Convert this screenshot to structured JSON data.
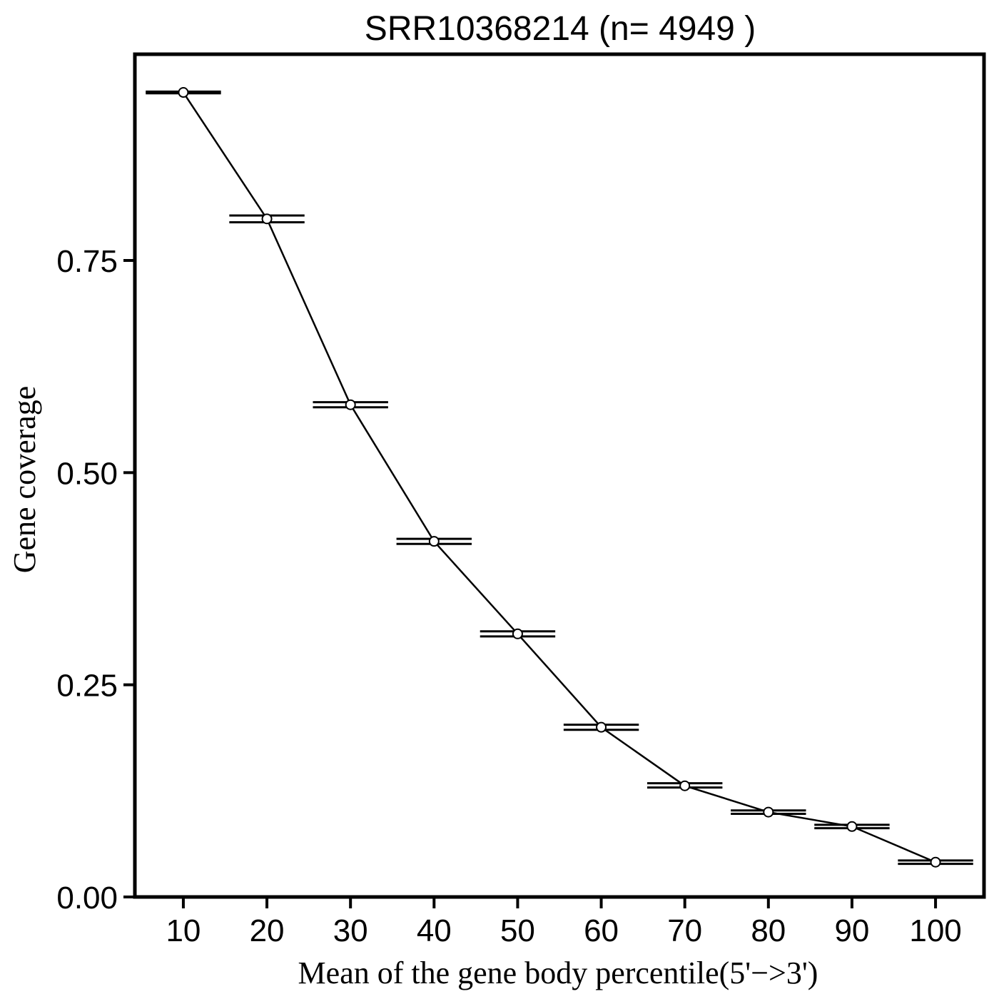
{
  "chart_data": {
    "type": "line",
    "title": "SRR10368214 (n= 4949 )",
    "xlabel": "Mean of the gene body percentile(5'−>3')",
    "ylabel": "Gene coverage",
    "x": [
      10,
      20,
      30,
      40,
      50,
      60,
      70,
      80,
      90,
      100
    ],
    "x_ticks": [
      "10",
      "20",
      "30",
      "40",
      "50",
      "60",
      "70",
      "80",
      "90",
      "100"
    ],
    "y_ticks": [
      "0.00",
      "0.25",
      "0.50",
      "0.75"
    ],
    "y_tick_values": [
      0,
      0.25,
      0.5,
      0.75
    ],
    "xlim": [
      4.2,
      105.8
    ],
    "ylim": [
      0,
      0.993
    ],
    "grid": false,
    "series": [
      {
        "values": [
          0.948,
          0.799,
          0.58,
          0.419,
          0.31,
          0.2,
          0.131,
          0.1,
          0.083,
          0.041
        ],
        "lower": [
          0.947,
          0.795,
          0.577,
          0.416,
          0.307,
          0.197,
          0.129,
          0.098,
          0.081,
          0.039
        ],
        "upper": [
          0.949,
          0.803,
          0.583,
          0.422,
          0.313,
          0.203,
          0.134,
          0.102,
          0.085,
          0.043
        ]
      }
    ],
    "errorbar_halfwidth": 4.5,
    "colors": {
      "line": "#000000",
      "marker_fill": "#ffffff",
      "frame": "#000000"
    }
  }
}
